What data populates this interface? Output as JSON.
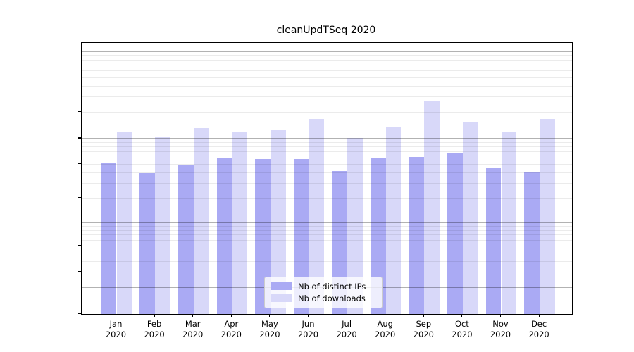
{
  "title": "cleanUpdTSeq 2020",
  "colors": {
    "distinct_ips": "#aaaaf4",
    "downloads": "#d8d8f9",
    "grid_major": "#b5b5b5",
    "grid_minor": "#ececec",
    "background": "#ffffff"
  },
  "chart_data": {
    "type": "bar",
    "title": "cleanUpdTSeq 2020",
    "categories": [
      "Jan",
      "Feb",
      "Mar",
      "Apr",
      "May",
      "Jun",
      "Jul",
      "Aug",
      "Sep",
      "Oct",
      "Nov",
      "Dec"
    ],
    "xtick_year": "2020",
    "series": [
      {
        "name": "Nb of distinct IPs",
        "color": "#aaaaf4",
        "values": [
          52,
          39,
          48,
          58,
          57,
          57,
          42,
          60,
          61,
          67,
          45,
          41
        ]
      },
      {
        "name": "Nb of downloads",
        "color": "#d8d8f9",
        "values": [
          117,
          104,
          131,
          116,
          127,
          168,
          101,
          137,
          272,
          155,
          116,
          166
        ]
      }
    ],
    "xlabel": "",
    "ylabel": "",
    "yscale": "log1p",
    "yticks": [
      0,
      1,
      2,
      5,
      10,
      20,
      50,
      100,
      200,
      500,
      1000
    ],
    "ylim": [
      0,
      1250
    ],
    "grid": "both",
    "grid_on_top_of_bars": true,
    "legend_position": "lower-center"
  }
}
